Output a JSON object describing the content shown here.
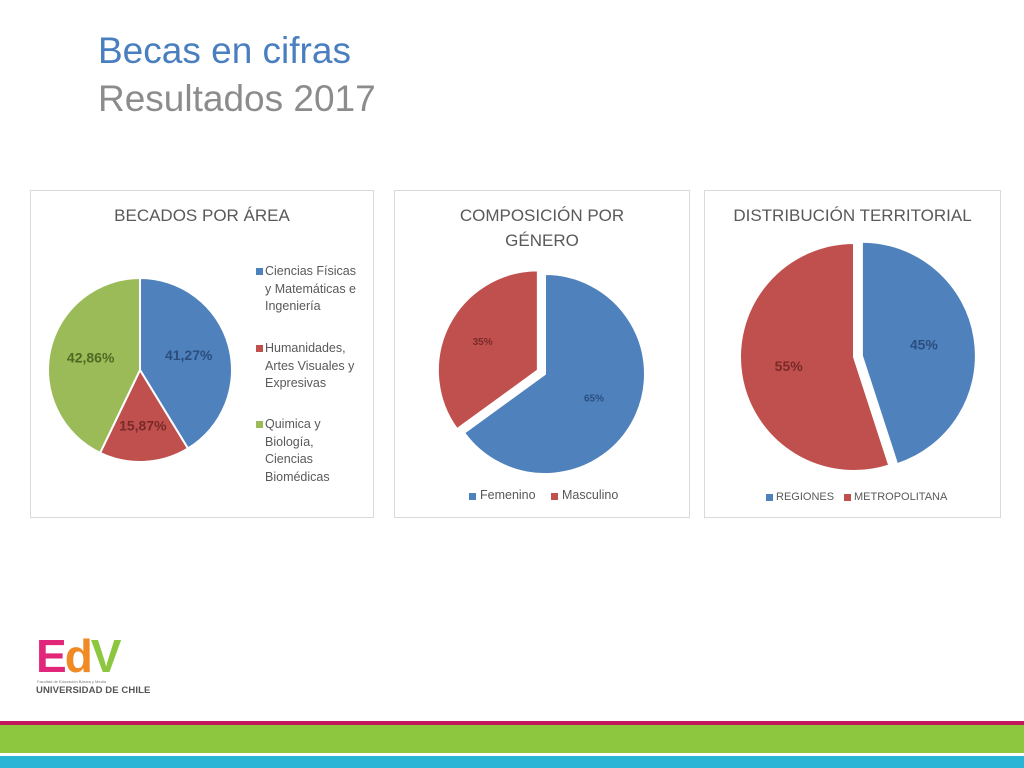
{
  "slide": {
    "title": "Becas en cifras",
    "subtitle": "Resultados 2017"
  },
  "chart_data": [
    {
      "type": "pie",
      "title": "BECADOS POR ÁREA",
      "categories": [
        "Ciencias Físicas y Matemáticas e Ingeniería",
        "Humanidades, Artes Visuales y Expresivas",
        "Quimica y Biología, Ciencias Biomédicas"
      ],
      "values": [
        41.27,
        15.87,
        42.86
      ],
      "data_labels": [
        "41,27%",
        "15,87%",
        "42,86%"
      ],
      "colors": [
        "#4f81bd",
        "#c0504d",
        "#9bbb59"
      ],
      "legend": "right"
    },
    {
      "type": "pie",
      "title": "COMPOSICIÓN POR GÉNERO",
      "categories": [
        "Femenino",
        "Masculino"
      ],
      "values": [
        65,
        35
      ],
      "data_labels": [
        "65%",
        "35%"
      ],
      "colors": [
        "#4f81bd",
        "#c0504d"
      ],
      "exploded": [
        false,
        true
      ],
      "legend": "bottom"
    },
    {
      "type": "pie",
      "title": "DISTRIBUCIÓN TERRITORIAL",
      "categories": [
        "REGIONES",
        "METROPOLITANA"
      ],
      "values": [
        45,
        55
      ],
      "data_labels": [
        "45%",
        "55%"
      ],
      "colors": [
        "#4f81bd",
        "#c0504d"
      ],
      "exploded": [
        true,
        false
      ],
      "legend": "bottom"
    }
  ],
  "logo": {
    "mark": "EdV",
    "tagline": "Facultad de Educación Básica y Media",
    "institution": "UNIVERSIDAD DE CHILE",
    "colors": [
      "#e2267a",
      "#f08a24",
      "#8dc63f"
    ]
  },
  "footer_colors": [
    "#c2185b",
    "#8dc63f",
    "#29b6d6"
  ]
}
